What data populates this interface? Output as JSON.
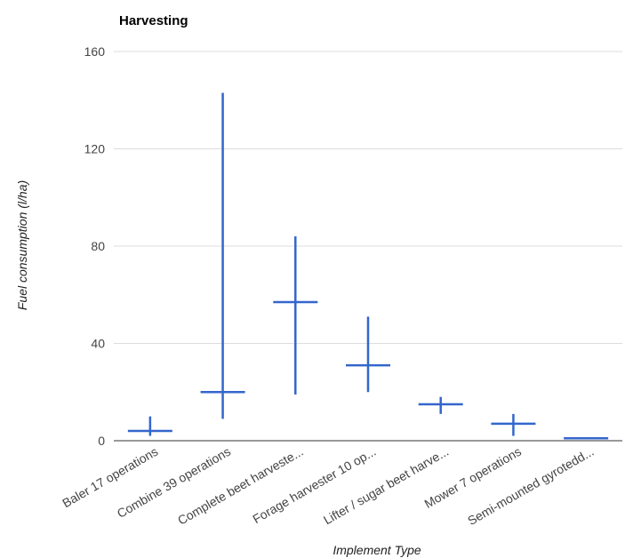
{
  "chart_data": {
    "type": "candlestick",
    "title": "Harvesting",
    "xlabel": "Implement Type",
    "ylabel": "Fuel consumption (l/ha)",
    "ylim": [
      0,
      160
    ],
    "yticks": [
      "0",
      "40",
      "80",
      "120",
      "160"
    ],
    "grid": true,
    "categories": [
      "Baler 17 operations",
      "Combine 39 operations",
      "Complete beet harveste...",
      "Forage harvester 10 op...",
      "Lifter / sugar beet harve...",
      "Mower 7 operations",
      "Semi-mounted gyrotedd..."
    ],
    "series": [
      {
        "min": [
          2,
          9,
          19,
          20,
          11,
          2,
          1
        ],
        "mean": [
          4,
          20,
          57,
          31,
          15,
          7,
          1
        ],
        "max": [
          10,
          143,
          84,
          51,
          18,
          11,
          1
        ]
      }
    ],
    "colors": {
      "series": "#3366cc",
      "grid": "#dddddd"
    }
  }
}
